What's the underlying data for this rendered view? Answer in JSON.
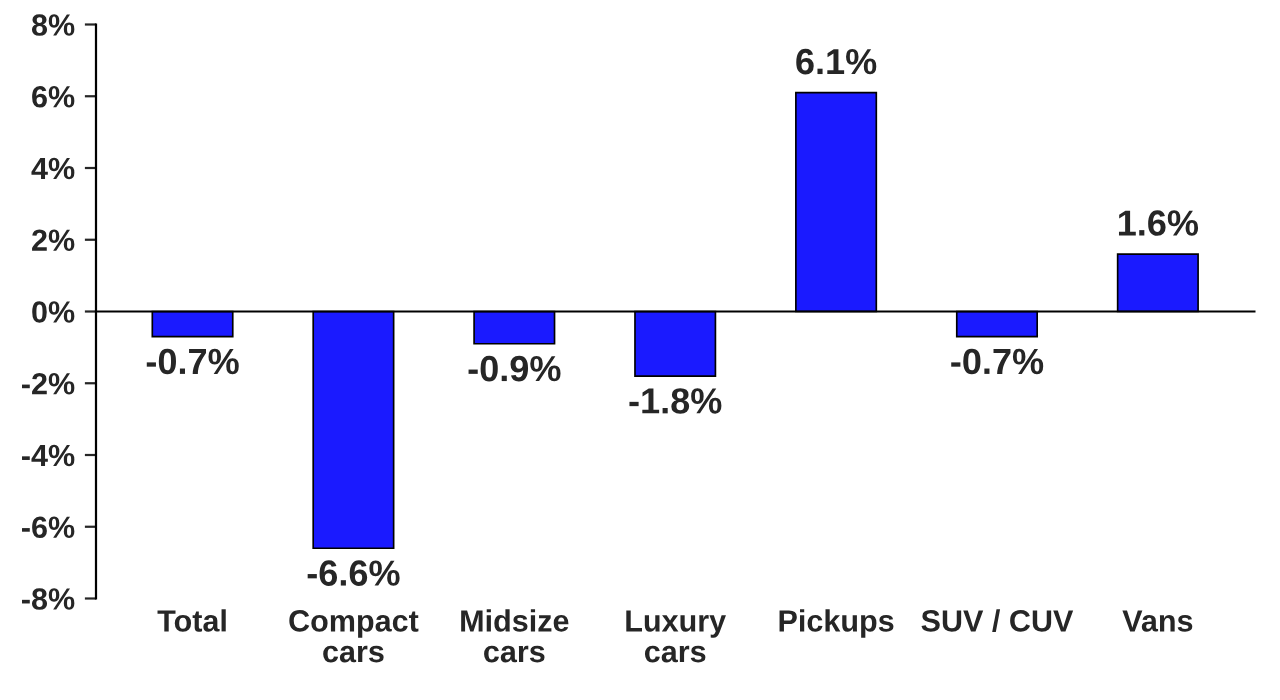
{
  "chart_data": {
    "type": "bar",
    "categories": [
      "Total",
      "Compact\ncars",
      "Midsize\ncars",
      "Luxury\ncars",
      "Pickups",
      "SUV / CUV",
      "Vans"
    ],
    "values": [
      -0.7,
      -6.6,
      -0.9,
      -1.8,
      6.1,
      -0.7,
      1.6
    ],
    "value_labels": [
      "-0.7%",
      "-6.6%",
      "-0.9%",
      "-1.8%",
      "6.1%",
      "-0.7%",
      "1.6%"
    ],
    "color": "#1a1aff",
    "ylim": [
      -8,
      8
    ],
    "yticks": [
      {
        "value": -8,
        "label": "-8%"
      },
      {
        "value": -6,
        "label": "-6%"
      },
      {
        "value": -4,
        "label": "-4%"
      },
      {
        "value": -2,
        "label": "-2%"
      },
      {
        "value": 0,
        "label": "0%"
      },
      {
        "value": 2,
        "label": "2%"
      },
      {
        "value": 4,
        "label": "4%"
      },
      {
        "value": 6,
        "label": "6%"
      },
      {
        "value": 8,
        "label": "8%"
      }
    ],
    "legend": false
  }
}
